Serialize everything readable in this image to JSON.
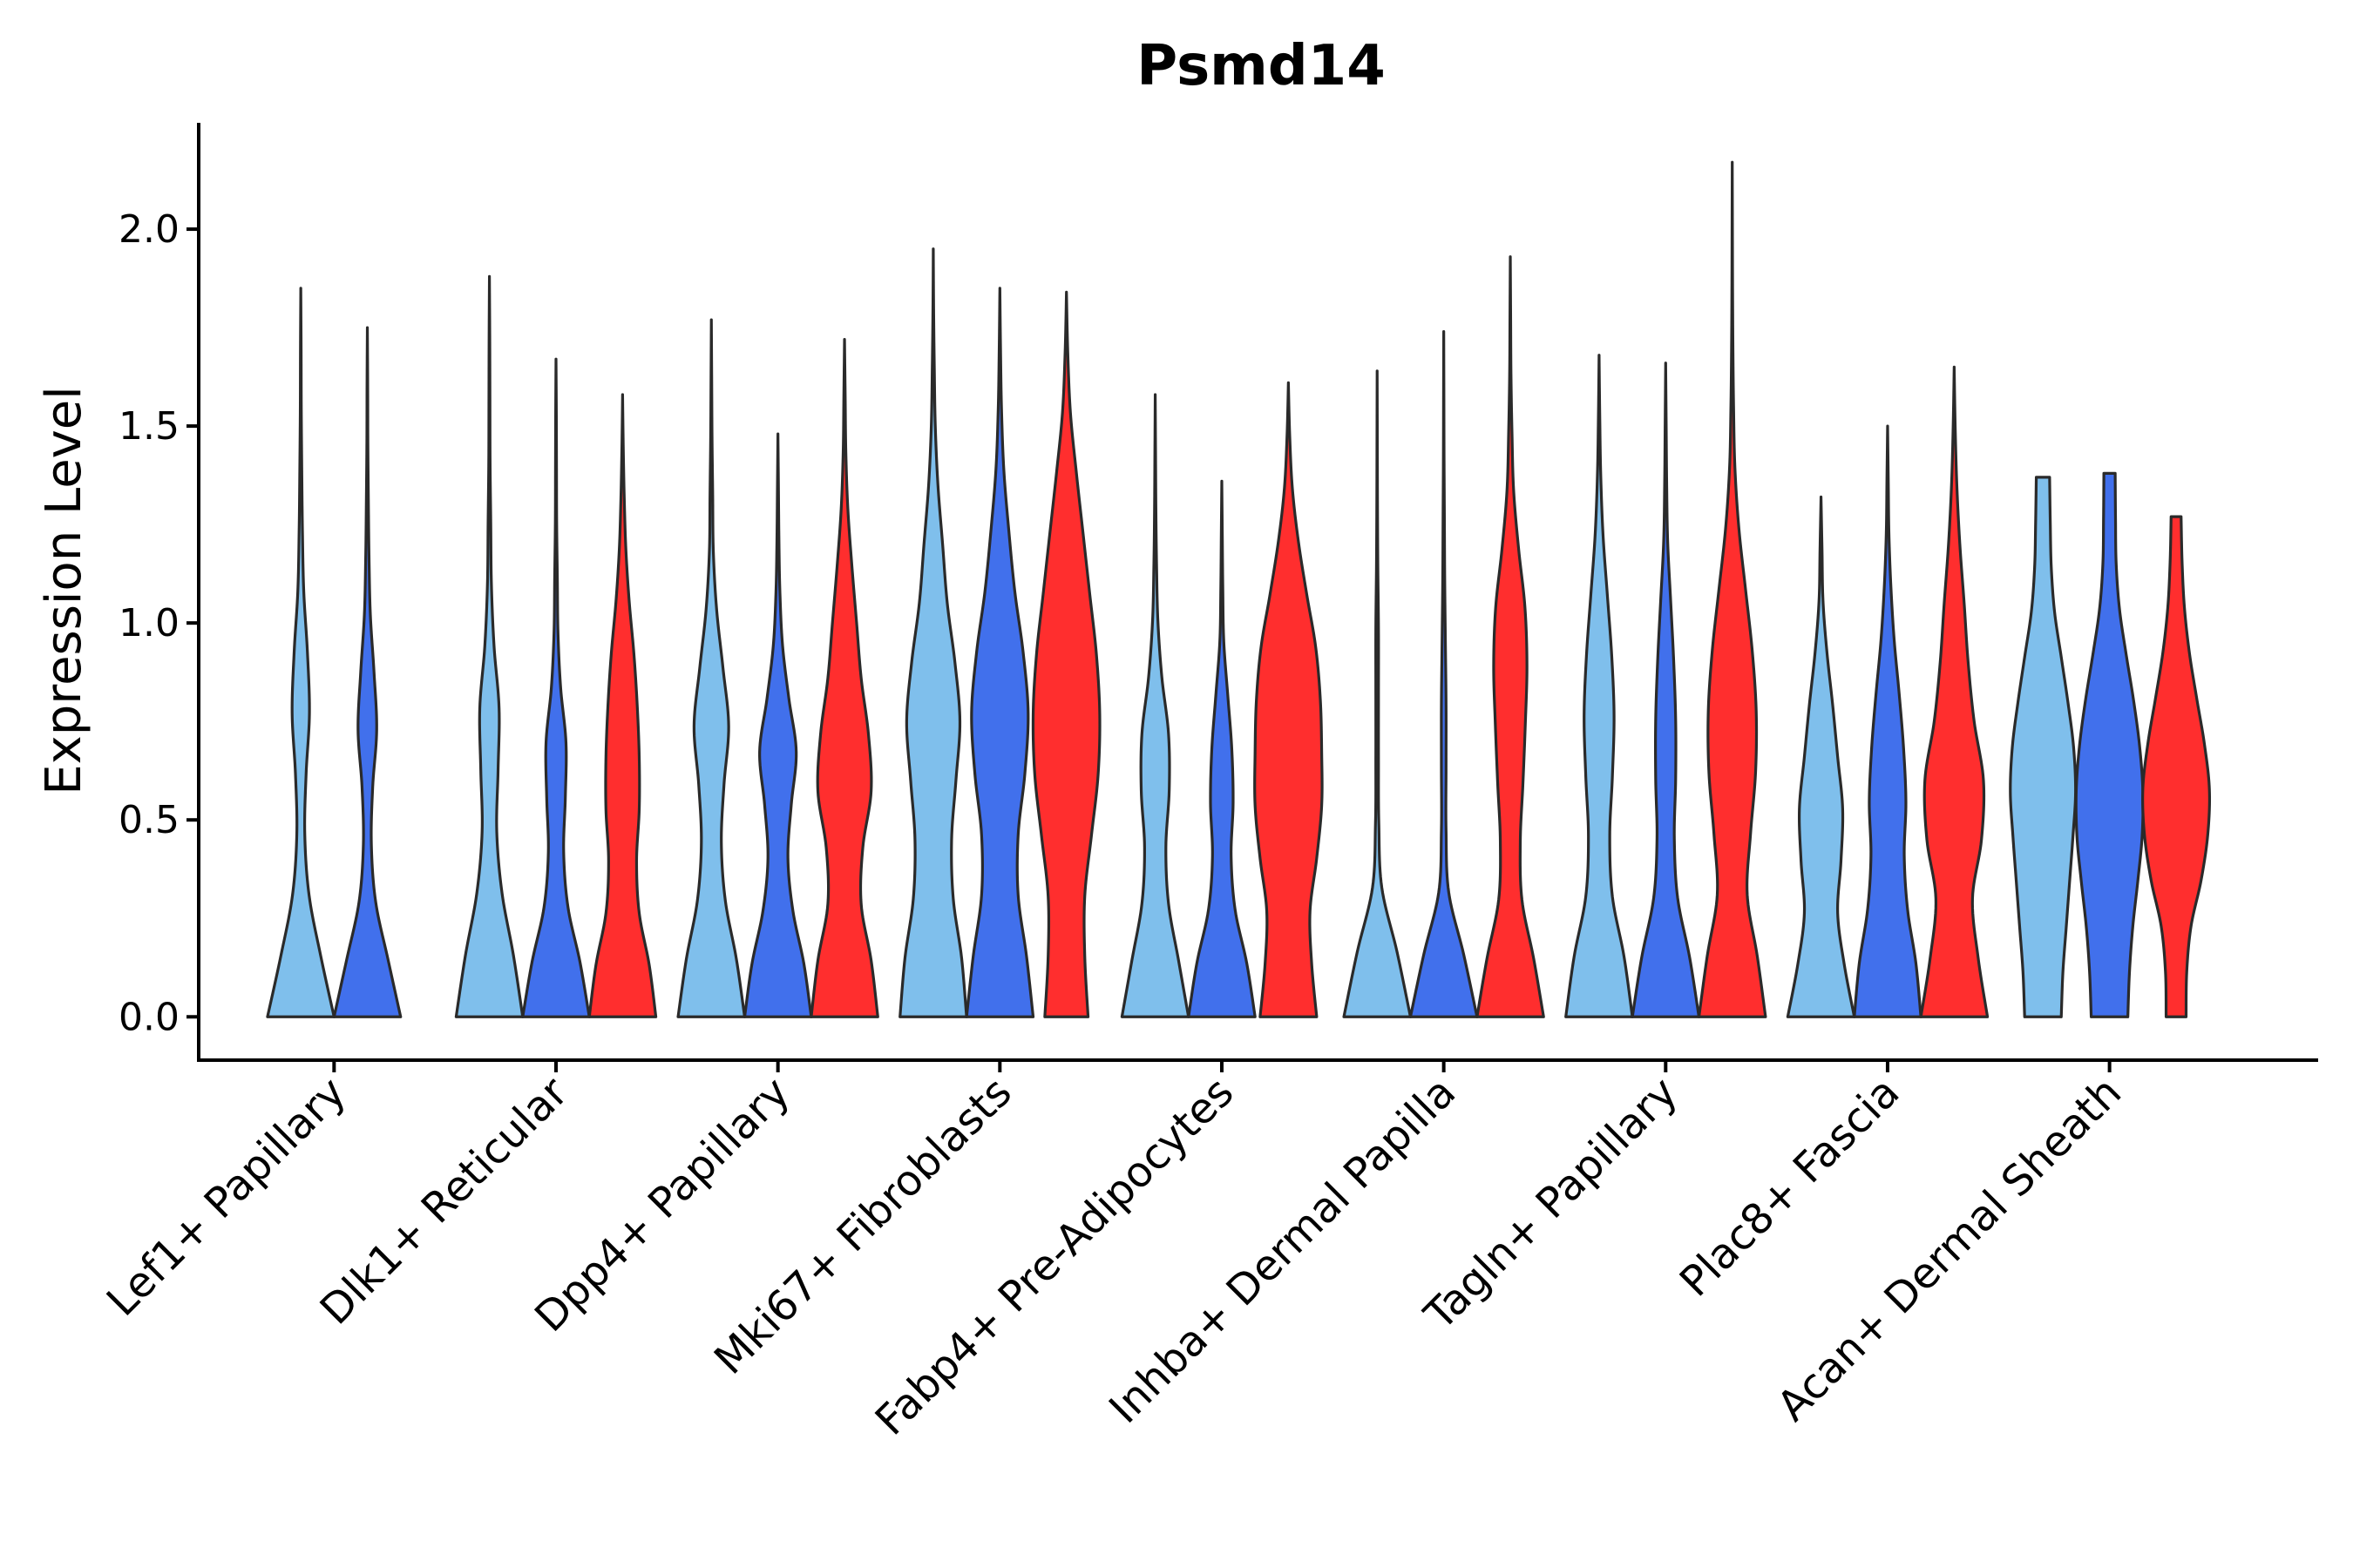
{
  "chart_data": {
    "type": "violin",
    "title": "Psmd14",
    "xlabel": "",
    "ylabel": "Expression Level",
    "ylim": [
      -0.11,
      2.27
    ],
    "yticks": [
      0.0,
      0.5,
      1.0,
      1.5,
      2.0
    ],
    "ytick_labels": [
      "0.0",
      "0.5",
      "1.0",
      "1.5",
      "2.0"
    ],
    "grid": false,
    "legend": "none",
    "series_colors": [
      "#7fbfec",
      "#4170ec",
      "#ff2e2e"
    ],
    "categories": [
      {
        "label": "Lef1+ Papillary",
        "violins": [
          {
            "series": 0,
            "max": 1.85,
            "widths": [
              1.0,
              0.6,
              0.25,
              0.12,
              0.16,
              0.26,
              0.2,
              0.09,
              0.05,
              0.03,
              0.015,
              0.01,
              0.0
            ]
          },
          {
            "series": 1,
            "max": 1.75,
            "widths": [
              1.0,
              0.62,
              0.25,
              0.12,
              0.16,
              0.28,
              0.2,
              0.09,
              0.05,
              0.03,
              0.015,
              0.01,
              0.0
            ]
          }
        ]
      },
      {
        "label": "Dlk1+ Reticular",
        "violins": [
          {
            "series": 0,
            "max": 1.88,
            "widths": [
              1.0,
              0.72,
              0.38,
              0.22,
              0.26,
              0.29,
              0.14,
              0.06,
              0.04,
              0.02,
              0.015,
              0.01,
              0.0
            ]
          },
          {
            "series": 1,
            "max": 1.67,
            "widths": [
              1.0,
              0.72,
              0.36,
              0.23,
              0.28,
              0.3,
              0.14,
              0.06,
              0.04,
              0.02,
              0.015,
              0.01,
              0.0
            ]
          },
          {
            "series": 2,
            "max": 1.58,
            "widths": [
              1.0,
              0.8,
              0.5,
              0.42,
              0.5,
              0.5,
              0.44,
              0.34,
              0.2,
              0.1,
              0.05,
              0.02,
              0.0
            ]
          }
        ]
      },
      {
        "label": "Dpp4+ Papillary",
        "violins": [
          {
            "series": 0,
            "max": 1.77,
            "widths": [
              1.0,
              0.75,
              0.42,
              0.3,
              0.38,
              0.52,
              0.35,
              0.16,
              0.06,
              0.04,
              0.02,
              0.01,
              0.0
            ]
          },
          {
            "series": 1,
            "max": 1.48,
            "widths": [
              1.0,
              0.78,
              0.45,
              0.3,
              0.4,
              0.55,
              0.33,
              0.14,
              0.06,
              0.03,
              0.015,
              0.0
            ]
          },
          {
            "series": 2,
            "max": 1.72,
            "widths": [
              1.0,
              0.8,
              0.5,
              0.55,
              0.8,
              0.72,
              0.5,
              0.36,
              0.22,
              0.1,
              0.04,
              0.02,
              0.0
            ]
          }
        ]
      },
      {
        "label": "Mki67+ Fibroblasts",
        "violins": [
          {
            "series": 0,
            "max": 1.95,
            "widths": [
              1.0,
              0.85,
              0.6,
              0.55,
              0.68,
              0.8,
              0.65,
              0.42,
              0.28,
              0.14,
              0.06,
              0.03,
              0.01,
              0.0
            ]
          },
          {
            "series": 1,
            "max": 1.85,
            "widths": [
              1.0,
              0.8,
              0.55,
              0.55,
              0.75,
              0.85,
              0.7,
              0.45,
              0.27,
              0.12,
              0.05,
              0.02,
              0.0
            ]
          },
          {
            "series": 2,
            "max": 1.84,
            "widths": [
              0.65,
              0.55,
              0.55,
              0.75,
              0.95,
              1.0,
              0.9,
              0.7,
              0.5,
              0.3,
              0.12,
              0.04,
              0.0
            ]
          }
        ]
      },
      {
        "label": "Fabp4+ Pre-Adipocytes",
        "violins": [
          {
            "series": 0,
            "max": 1.58,
            "widths": [
              1.0,
              0.7,
              0.4,
              0.32,
              0.42,
              0.4,
              0.2,
              0.08,
              0.04,
              0.02,
              0.01,
              0.0
            ]
          },
          {
            "series": 1,
            "max": 1.36,
            "widths": [
              1.0,
              0.75,
              0.4,
              0.28,
              0.34,
              0.3,
              0.18,
              0.06,
              0.03,
              0.015,
              0.0
            ]
          },
          {
            "series": 2,
            "max": 1.61,
            "widths": [
              0.85,
              0.7,
              0.65,
              0.85,
              1.0,
              1.0,
              0.96,
              0.82,
              0.55,
              0.3,
              0.12,
              0.04,
              0.0
            ]
          }
        ]
      },
      {
        "label": "Inhba+ Dermal Papilla",
        "violins": [
          {
            "series": 0,
            "max": 1.64,
            "widths": [
              1.0,
              0.6,
              0.14,
              0.05,
              0.04,
              0.04,
              0.04,
              0.02,
              0.01,
              0.005,
              0.0
            ]
          },
          {
            "series": 1,
            "max": 1.74,
            "widths": [
              1.0,
              0.6,
              0.15,
              0.07,
              0.07,
              0.07,
              0.05,
              0.03,
              0.02,
              0.01,
              0.005,
              0.0
            ]
          },
          {
            "series": 2,
            "max": 1.93,
            "widths": [
              1.0,
              0.7,
              0.35,
              0.3,
              0.38,
              0.45,
              0.5,
              0.44,
              0.25,
              0.1,
              0.05,
              0.02,
              0.01,
              0.0
            ]
          }
        ]
      },
      {
        "label": "Tagln+ Papillary",
        "violins": [
          {
            "series": 0,
            "max": 1.68,
            "widths": [
              1.0,
              0.75,
              0.4,
              0.32,
              0.4,
              0.45,
              0.38,
              0.25,
              0.12,
              0.05,
              0.02,
              0.0
            ]
          },
          {
            "series": 1,
            "max": 1.66,
            "widths": [
              1.0,
              0.72,
              0.36,
              0.26,
              0.3,
              0.3,
              0.24,
              0.15,
              0.06,
              0.03,
              0.015,
              0.0
            ]
          },
          {
            "series": 2,
            "max": 2.17,
            "widths": [
              1.0,
              0.75,
              0.45,
              0.55,
              0.7,
              0.72,
              0.6,
              0.4,
              0.2,
              0.08,
              0.04,
              0.02,
              0.01,
              0.005,
              0.0
            ]
          }
        ]
      },
      {
        "label": "Plac8+ Fascia",
        "violins": [
          {
            "series": 0,
            "max": 1.32,
            "widths": [
              1.0,
              0.7,
              0.5,
              0.6,
              0.65,
              0.5,
              0.35,
              0.18,
              0.06,
              0.03,
              0.0
            ]
          },
          {
            "series": 1,
            "max": 1.5,
            "widths": [
              1.0,
              0.85,
              0.6,
              0.5,
              0.55,
              0.48,
              0.35,
              0.2,
              0.1,
              0.04,
              0.02,
              0.0
            ]
          },
          {
            "series": 2,
            "max": 1.65,
            "widths": [
              1.0,
              0.72,
              0.55,
              0.82,
              0.88,
              0.6,
              0.42,
              0.3,
              0.17,
              0.08,
              0.03,
              0.0
            ]
          }
        ]
      },
      {
        "label": "Acan+ Dermal Sheath",
        "violins": [
          {
            "series": 0,
            "max": 1.37,
            "widths": [
              0.55,
              0.6,
              0.7,
              0.8,
              0.9,
              0.98,
              0.92,
              0.75,
              0.55,
              0.35,
              0.25,
              0.22,
              0.2
            ]
          },
          {
            "series": 1,
            "max": 1.38,
            "widths": [
              0.55,
              0.6,
              0.7,
              0.85,
              0.98,
              1.0,
              0.9,
              0.72,
              0.5,
              0.3,
              0.2,
              0.18,
              0.17
            ]
          },
          {
            "series": 2,
            "max": 1.27,
            "widths": [
              0.3,
              0.32,
              0.45,
              0.75,
              0.95,
              1.0,
              0.85,
              0.62,
              0.4,
              0.25,
              0.18,
              0.15
            ]
          }
        ]
      }
    ]
  }
}
